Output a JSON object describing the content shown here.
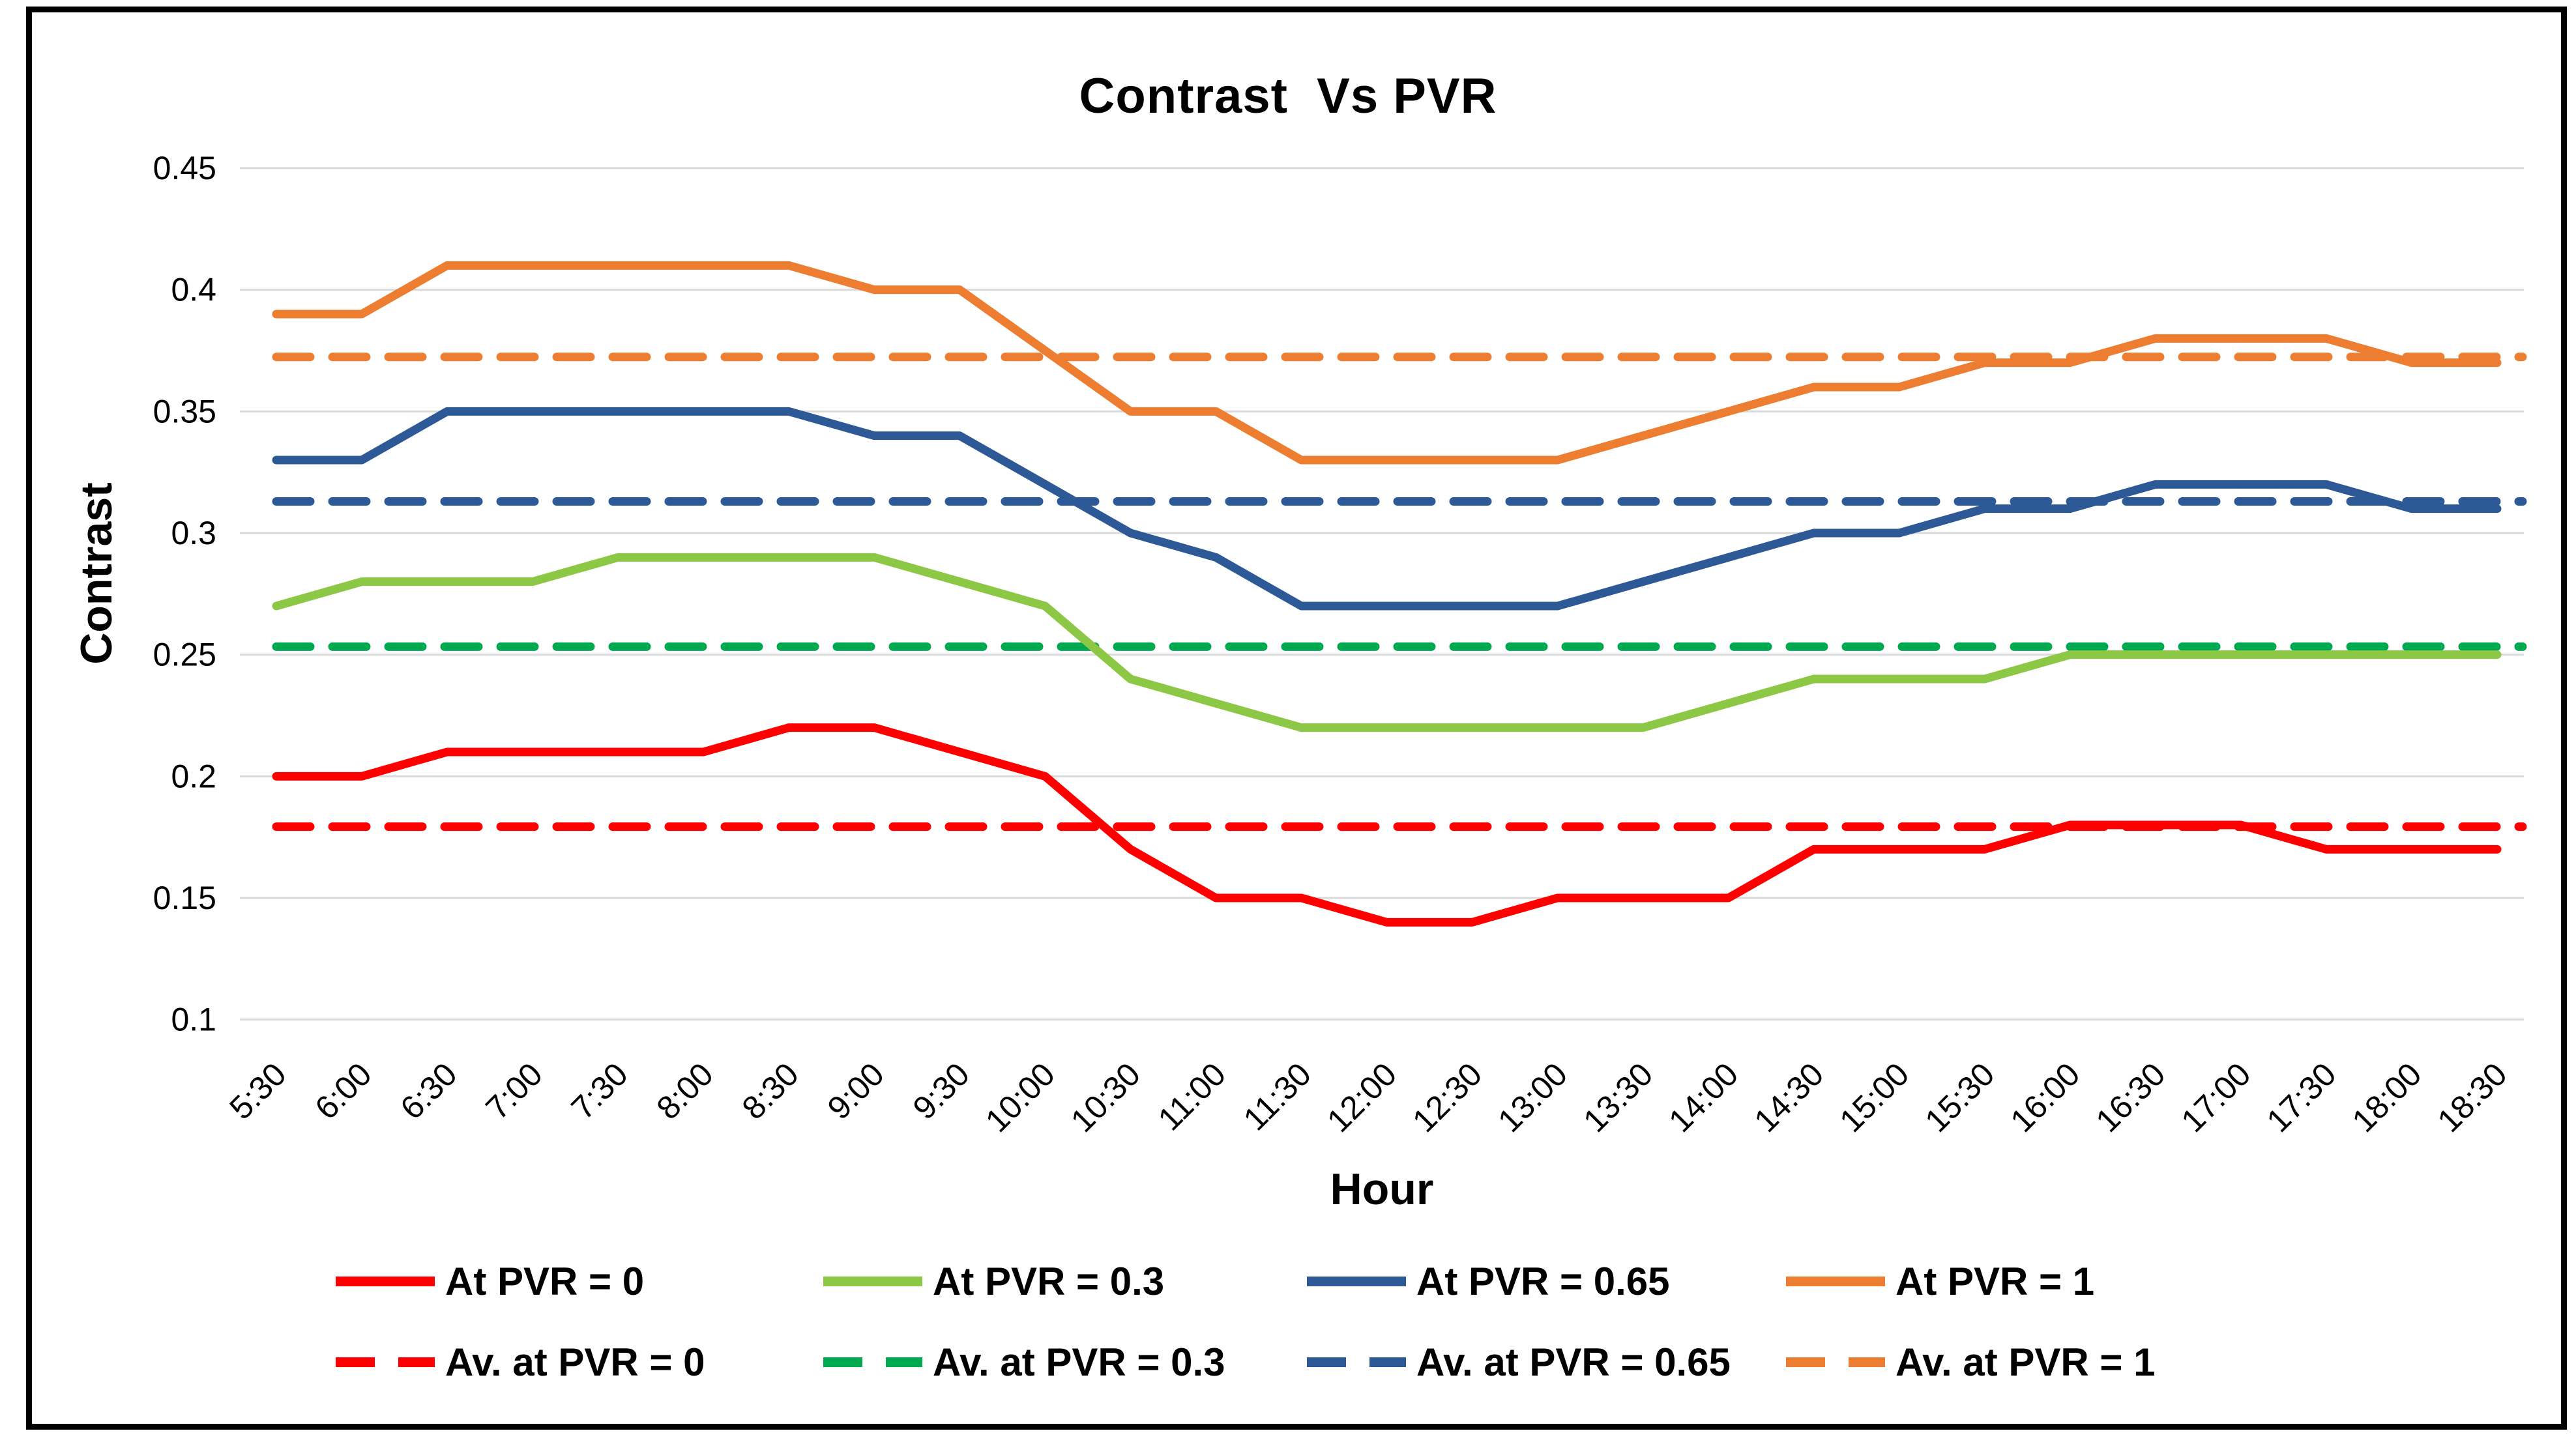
{
  "title": "Contrast  Vs PVR",
  "y_axis": {
    "label": "Contrast",
    "tick_labels": [
      "0.45",
      "0.4",
      "0.35",
      "0.3",
      "0.25",
      "0.2",
      "0.15",
      "0.1"
    ]
  },
  "x_axis": {
    "label": "Hour"
  },
  "chart_data": {
    "type": "line",
    "title": "Contrast  Vs PVR",
    "xlabel": "Hour",
    "ylabel": "Contrast",
    "ylim": [
      0.1,
      0.45
    ],
    "ytick_step": 0.05,
    "grid": true,
    "legend_position": "bottom",
    "categories": [
      "5:30",
      "6:00",
      "6:30",
      "7:00",
      "7:30",
      "8:00",
      "8:30",
      "9:00",
      "9:30",
      "10:00",
      "10:30",
      "11:00",
      "11:30",
      "12:00",
      "12:30",
      "13:00",
      "13:30",
      "14:00",
      "14:30",
      "15:00",
      "15:30",
      "16:00",
      "16:30",
      "17:00",
      "17:30",
      "18:00",
      "18:30"
    ],
    "series": [
      {
        "name": "At PVR = 0",
        "style": "solid",
        "color": "#FF0000",
        "values": [
          0.2,
          0.2,
          0.21,
          0.21,
          0.21,
          0.21,
          0.22,
          0.22,
          0.21,
          0.2,
          0.17,
          0.15,
          0.15,
          0.14,
          0.14,
          0.15,
          0.15,
          0.15,
          0.17,
          0.17,
          0.17,
          0.18,
          0.18,
          0.18,
          0.17,
          0.17,
          0.17
        ]
      },
      {
        "name": "At PVR = 0.3",
        "style": "solid",
        "color": "#8CC846",
        "values": [
          0.27,
          0.28,
          0.28,
          0.28,
          0.29,
          0.29,
          0.29,
          0.29,
          0.28,
          0.27,
          0.24,
          0.23,
          0.22,
          0.22,
          0.22,
          0.22,
          0.22,
          0.23,
          0.24,
          0.24,
          0.24,
          0.25,
          0.25,
          0.25,
          0.25,
          0.25,
          0.25
        ]
      },
      {
        "name": "At PVR = 0.65",
        "style": "solid",
        "color": "#2D5A96",
        "values": [
          0.33,
          0.33,
          0.35,
          0.35,
          0.35,
          0.35,
          0.35,
          0.34,
          0.34,
          0.32,
          0.3,
          0.29,
          0.27,
          0.27,
          0.27,
          0.27,
          0.28,
          0.29,
          0.3,
          0.3,
          0.31,
          0.31,
          0.32,
          0.32,
          0.32,
          0.31,
          0.31
        ]
      },
      {
        "name": "At PVR = 1",
        "style": "solid",
        "color": "#ED7D31",
        "values": [
          0.39,
          0.39,
          0.41,
          0.41,
          0.41,
          0.41,
          0.41,
          0.4,
          0.4,
          0.375,
          0.35,
          0.35,
          0.33,
          0.33,
          0.33,
          0.33,
          0.34,
          0.35,
          0.36,
          0.36,
          0.37,
          0.37,
          0.38,
          0.38,
          0.38,
          0.37,
          0.37
        ]
      },
      {
        "name": "Av. at PVR = 0",
        "style": "dashed",
        "color": "#FF0000",
        "value": 0.1793
      },
      {
        "name": "Av. at PVR = 0.3",
        "style": "dashed",
        "color": "#00A850",
        "value": 0.2533
      },
      {
        "name": "Av. at PVR = 0.65",
        "style": "dashed",
        "color": "#2D5A96",
        "value": 0.313
      },
      {
        "name": "Av. at PVR = 1",
        "style": "dashed",
        "color": "#ED7D31",
        "value": 0.3724
      }
    ]
  },
  "colors": {
    "gridline": "#D9D9D9",
    "text": "#000000",
    "border": "#000000",
    "background": "#FFFFFF"
  }
}
